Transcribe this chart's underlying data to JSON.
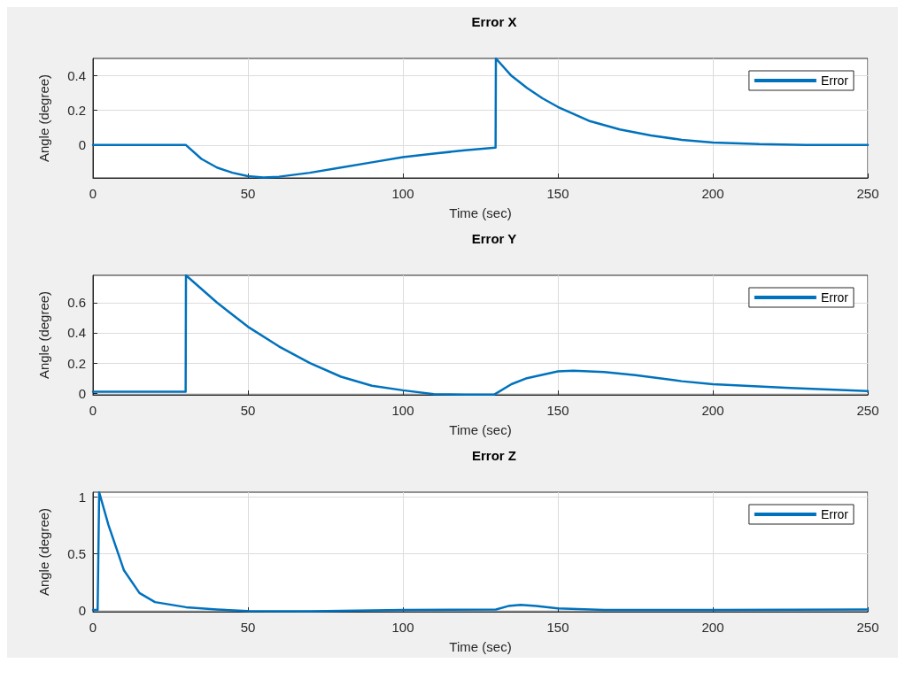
{
  "chart_data": [
    {
      "type": "line",
      "title": "Error X",
      "xlabel": "Time (sec)",
      "ylabel": "Angle (degree)",
      "x": [
        0,
        30,
        35,
        40,
        45,
        50,
        55,
        60,
        70,
        80,
        90,
        100,
        110,
        120,
        129.9,
        130,
        135,
        140,
        145,
        150,
        160,
        170,
        180,
        190,
        200,
        215,
        230,
        250
      ],
      "series": [
        {
          "name": "Error",
          "color": "#0072bd",
          "values": [
            0,
            0,
            -0.08,
            -0.13,
            -0.16,
            -0.18,
            -0.187,
            -0.183,
            -0.16,
            -0.13,
            -0.1,
            -0.07,
            -0.05,
            -0.03,
            -0.015,
            0.5,
            0.4,
            0.33,
            0.27,
            0.22,
            0.14,
            0.09,
            0.055,
            0.03,
            0.015,
            0.005,
            0.001,
            0
          ]
        }
      ],
      "xlim": [
        0,
        250
      ],
      "ylim": [
        -0.19,
        0.5
      ],
      "xticks": [
        0,
        50,
        100,
        150,
        200,
        250
      ],
      "yticks": [
        0,
        0.2,
        0.4
      ],
      "grid": true,
      "legend": "top right",
      "marker": "none",
      "line_style": "solid"
    },
    {
      "type": "line",
      "title": "Error Y",
      "xlabel": "Time (sec)",
      "ylabel": "Angle (degree)",
      "x": [
        0,
        29.9,
        30,
        40,
        50,
        60,
        70,
        80,
        90,
        100,
        110,
        120,
        129.5,
        135,
        140,
        150,
        155,
        165,
        175,
        190,
        200,
        225,
        250
      ],
      "series": [
        {
          "name": "Error",
          "color": "#0072bd",
          "values": [
            0.01,
            0.01,
            0.78,
            0.6,
            0.44,
            0.31,
            0.2,
            0.11,
            0.05,
            0.02,
            -0.005,
            -0.008,
            -0.008,
            0.06,
            0.1,
            0.145,
            0.15,
            0.14,
            0.12,
            0.08,
            0.06,
            0.035,
            0.015
          ]
        }
      ],
      "xlim": [
        0,
        250
      ],
      "ylim": [
        -0.01,
        0.78
      ],
      "xticks": [
        0,
        50,
        100,
        150,
        200,
        250
      ],
      "yticks": [
        0,
        0.2,
        0.4,
        0.6
      ],
      "grid": true,
      "legend": "top right",
      "marker": "none",
      "line_style": "solid"
    },
    {
      "type": "line",
      "title": "Error Z",
      "xlabel": "Time (sec)",
      "ylabel": "Angle (degree)",
      "x": [
        0,
        1.5,
        2,
        5,
        10,
        15,
        20,
        30,
        40,
        50,
        70,
        100,
        130,
        134,
        138,
        143,
        150,
        165,
        200,
        250
      ],
      "series": [
        {
          "name": "Error",
          "color": "#0072bd",
          "values": [
            0,
            0,
            1.04,
            0.75,
            0.35,
            0.15,
            0.07,
            0.025,
            0.005,
            -0.01,
            -0.012,
            0,
            0.005,
            0.035,
            0.045,
            0.035,
            0.015,
            0,
            0,
            0.005
          ]
        }
      ],
      "xlim": [
        0,
        250
      ],
      "ylim": [
        -0.015,
        1.04
      ],
      "xticks": [
        0,
        50,
        100,
        150,
        200,
        250
      ],
      "yticks": [
        0,
        0.5,
        1
      ],
      "grid": true,
      "legend": "top right",
      "marker": "none",
      "line_style": "solid"
    }
  ]
}
